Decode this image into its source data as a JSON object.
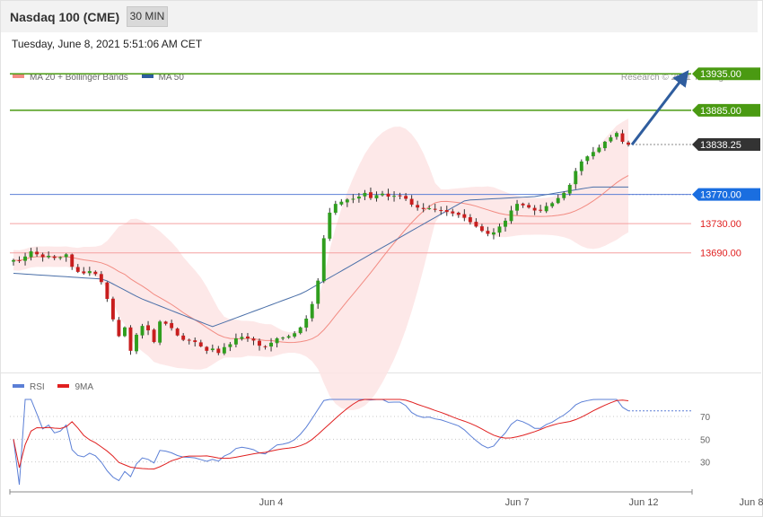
{
  "header": {
    "title": "Nasdaq 100 (CME)",
    "timeframe": "30 MIN"
  },
  "timestamp": "Tuesday, June 8, 2021 5:51:06 AM CET",
  "legend": [
    {
      "label": "MA 20 + Bollinger Bands",
      "color": "#f28b82"
    },
    {
      "label": "MA 50",
      "color": "#2f5d9e"
    }
  ],
  "credit": "Research © 2021 Trading Central",
  "rsi_legend": [
    {
      "label": "RSI",
      "color": "#5b7fd6"
    },
    {
      "label": "9MA",
      "color": "#e02020"
    }
  ],
  "chart_data": [
    {
      "type": "candlestick",
      "title": "Nasdaq 100 (CME)",
      "ylim": [
        13530,
        13950
      ],
      "x_tick_labels": [
        "Jun 4",
        "Jun 7",
        "Jun 8",
        "Jun 12"
      ],
      "levels": [
        {
          "label": "13935.00",
          "value": 13935,
          "color": "#4a9a12",
          "kind": "resistance"
        },
        {
          "label": "13885.00",
          "value": 13885,
          "color": "#4a9a12",
          "kind": "resistance"
        },
        {
          "label": "13838.25",
          "value": 13838.25,
          "color": "#333333",
          "kind": "last"
        },
        {
          "label": "13770.00",
          "value": 13770,
          "color": "#1a6ee0",
          "kind": "pivot"
        },
        {
          "label": "13730.00",
          "value": 13730,
          "color": "#e02020",
          "kind": "support"
        },
        {
          "label": "13690.00",
          "value": 13690,
          "color": "#e02020",
          "kind": "support"
        }
      ],
      "series": [
        {
          "name": "MA 20 + Bollinger Bands"
        },
        {
          "name": "MA 50"
        }
      ],
      "close": [
        13680,
        13679,
        13685,
        13692,
        13688,
        13684,
        13686,
        13683,
        13684,
        13688,
        13671,
        13664,
        13662,
        13665,
        13661,
        13650,
        13627,
        13599,
        13576,
        13588,
        13556,
        13578,
        13590,
        13584,
        13568,
        13596,
        13593,
        13587,
        13577,
        13571,
        13570,
        13568,
        13562,
        13556,
        13559,
        13553,
        13561,
        13565,
        13573,
        13575,
        13573,
        13570,
        13563,
        13561,
        13567,
        13573,
        13574,
        13576,
        13580,
        13588,
        13600,
        13620,
        13652,
        13710,
        13745,
        13757,
        13760,
        13763,
        13764,
        13767,
        13772,
        13765,
        13769,
        13771,
        13767,
        13768,
        13768,
        13764,
        13756,
        13752,
        13750,
        13751,
        13749,
        13748,
        13746,
        13744,
        13742,
        13738,
        13732,
        13726,
        13720,
        13716,
        13718,
        13726,
        13734,
        13748,
        13757,
        13755,
        13752,
        13748,
        13748,
        13754,
        13758,
        13765,
        13772,
        13783,
        13802,
        13815,
        13822,
        13828,
        13834,
        13842,
        13848,
        13854,
        13842,
        13838
      ],
      "ma50_anchor": [
        [
          0,
          13662
        ],
        [
          25,
          13654
        ],
        [
          35,
          13628
        ],
        [
          55,
          13589
        ],
        [
          80,
          13635
        ],
        [
          110,
          13720
        ],
        [
          125,
          13762
        ],
        [
          144,
          13767
        ],
        [
          160,
          13780
        ],
        [
          170,
          13780
        ]
      ]
    },
    {
      "type": "line",
      "title": "RSI",
      "ylim": [
        10,
        85
      ],
      "y_tick_labels": [
        "70",
        "50",
        "30"
      ],
      "series": [
        {
          "name": "RSI"
        },
        {
          "name": "9MA"
        }
      ]
    }
  ]
}
